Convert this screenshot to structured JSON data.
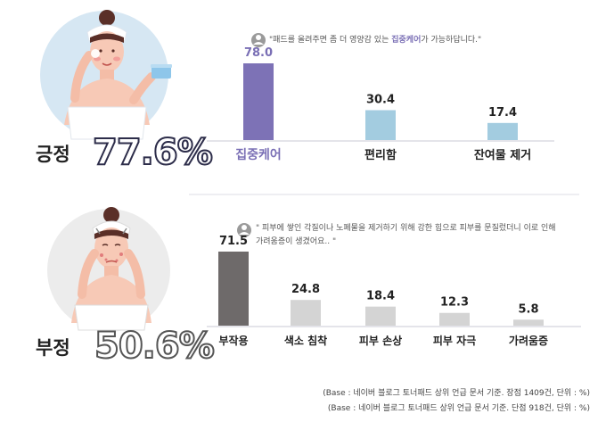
{
  "positive": {
    "label": "긍정",
    "percent": "77.6%",
    "quote_prefix": "\"패드를 올려주면 좀 더 영양감 있는 ",
    "quote_highlight": "집중케어",
    "quote_suffix": "가 가능하답니다.\""
  },
  "negative": {
    "label": "부정",
    "percent": "50.6%",
    "quote_line1": "\" 피부에 쌓인 각질이나 노폐물을 제거하기 위해 강한 힘으로 피부를 문질렀더니 이로 인해",
    "quote_line2": "가려움증이 생겼어요.. \""
  },
  "footnotes": [
    "(Base : 네이버 블로그 토너패드 상위 언급 문서 기준. 장점 1409건, 단위 : %)",
    "(Base : 네이버 블로그 토너패드 상위 언급 문서 기준. 단점 918건, 단위 : %)"
  ],
  "colors": {
    "positive_primary": "#7d72b6",
    "positive_secondary": "#a3cce0",
    "negative_primary": "#6e6a6a",
    "negative_secondary": "#d4d4d4",
    "positive_label": "#7a6fb5",
    "text": "#222222"
  },
  "chart_data": [
    {
      "type": "bar",
      "categories": [
        "집중케어",
        "편리함",
        "잔여물 제거"
      ],
      "values": [
        78.0,
        30.4,
        17.4
      ],
      "value_labels": [
        "78.0",
        "30.4",
        "17.4"
      ],
      "ylim": [
        0,
        100
      ],
      "highlight_index": 0
    },
    {
      "type": "bar",
      "categories": [
        "부작용",
        "색소 침착",
        "피부 손상",
        "피부 자극",
        "가려움증"
      ],
      "values": [
        71.5,
        24.8,
        18.4,
        12.3,
        5.8
      ],
      "value_labels": [
        "71.5",
        "24.8",
        "18.4",
        "12.3",
        "5.8"
      ],
      "ylim": [
        0,
        100
      ],
      "highlight_index": 0
    }
  ]
}
